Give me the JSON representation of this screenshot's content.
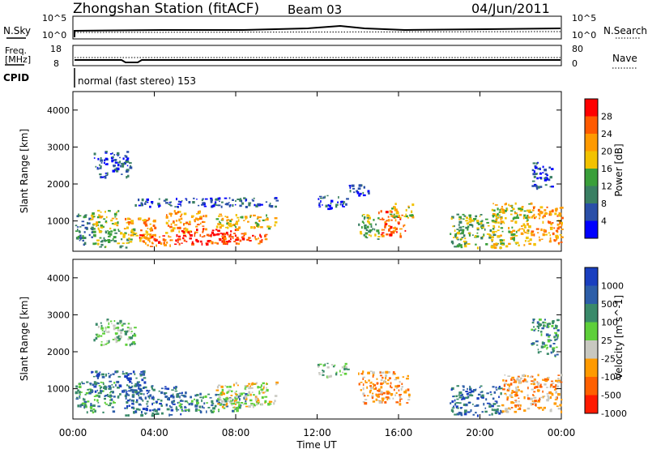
{
  "header": {
    "station": "Zhongshan Station (fitACF)",
    "beam": "Beam 03",
    "date": "04/Jun/2011"
  },
  "top_panels": {
    "nsky_label": "N.Sky",
    "nsky_ticks": [
      "10^5",
      "10^0"
    ],
    "nsearch_label": "N.Search",
    "nsearch_ticks": [
      "10^5",
      "10^0"
    ],
    "freq_label_1": "Freq.",
    "freq_label_2": "[MHz]",
    "freq_ticks": [
      "18",
      "8"
    ],
    "nave_label": "Nave",
    "nave_ticks": [
      "80",
      "0"
    ],
    "cpid_label": "CPID",
    "cpid_text": "normal (fast stereo) 153"
  },
  "axes": {
    "ylabel": "Slant Range [km]",
    "xlabel": "Time UT",
    "yticks": [
      "4000",
      "3000",
      "2000",
      "1000"
    ],
    "xticks": [
      "00:00",
      "04:00",
      "08:00",
      "12:00",
      "16:00",
      "20:00",
      "00:00"
    ]
  },
  "power_scale": {
    "label": "Power [dB]",
    "ticks": [
      "28",
      "24",
      "20",
      "16",
      "12",
      "8",
      "4"
    ],
    "colors": [
      "#ff0000",
      "#ff5a00",
      "#ff9a00",
      "#f2c200",
      "#3a9f3a",
      "#3a7f63",
      "#2a4fa8",
      "#0000ff"
    ]
  },
  "velocity_scale": {
    "label": "Velocity [m s^-1]",
    "ticks": [
      "1000",
      "500",
      "100",
      "25",
      "-25",
      "-100",
      "-500",
      "-1000"
    ],
    "colors": [
      "#1a3fbf",
      "#2d5ea8",
      "#3a8a6a",
      "#5ecf3a",
      "#c8c8c0",
      "#ff9a00",
      "#ff6000",
      "#ff1a00"
    ]
  },
  "chart_data": {
    "type": "heatmap",
    "x_range_hours": [
      0,
      24
    ],
    "y_range_km": [
      180,
      4500
    ],
    "power_patches": [
      {
        "t0": 0.1,
        "t1": 1.0,
        "r0": 350,
        "r1": 1200,
        "level": 2
      },
      {
        "t0": 0.8,
        "t1": 2.2,
        "r0": 800,
        "r1": 1300,
        "level": 4
      },
      {
        "t0": 1.0,
        "t1": 3.0,
        "r0": 300,
        "r1": 800,
        "level": 3
      },
      {
        "t0": 2.5,
        "t1": 4.0,
        "r0": 500,
        "r1": 1100,
        "level": 5
      },
      {
        "t0": 3.2,
        "t1": 5.0,
        "r0": 300,
        "r1": 650,
        "level": 6
      },
      {
        "t0": 4.5,
        "t1": 6.5,
        "r0": 700,
        "r1": 1300,
        "level": 5
      },
      {
        "t0": 5.0,
        "t1": 8.0,
        "r0": 400,
        "r1": 800,
        "level": 7
      },
      {
        "t0": 6.5,
        "t1": 9.5,
        "r0": 400,
        "r1": 700,
        "level": 6
      },
      {
        "t0": 7.0,
        "t1": 10.0,
        "r0": 800,
        "r1": 1200,
        "level": 4
      },
      {
        "t0": 3.0,
        "t1": 10.0,
        "r0": 1400,
        "r1": 1650,
        "level": 1
      },
      {
        "t0": 1.0,
        "t1": 2.8,
        "r0": 2200,
        "r1": 2900,
        "level": 1
      },
      {
        "t0": 12.0,
        "t1": 13.5,
        "r0": 1350,
        "r1": 1700,
        "level": 1
      },
      {
        "t0": 13.5,
        "t1": 14.5,
        "r0": 1700,
        "r1": 2000,
        "level": 1
      },
      {
        "t0": 14.0,
        "t1": 15.0,
        "r0": 500,
        "r1": 1200,
        "level": 3
      },
      {
        "t0": 15.0,
        "t1": 16.3,
        "r0": 600,
        "r1": 1300,
        "level": 6
      },
      {
        "t0": 15.5,
        "t1": 16.7,
        "r0": 1100,
        "r1": 1500,
        "level": 4
      },
      {
        "t0": 18.5,
        "t1": 21.0,
        "r0": 300,
        "r1": 1200,
        "level": 3
      },
      {
        "t0": 20.5,
        "t1": 22.5,
        "r0": 300,
        "r1": 1500,
        "level": 4
      },
      {
        "t0": 22.5,
        "t1": 24.0,
        "r0": 400,
        "r1": 1400,
        "level": 5
      },
      {
        "t0": 22.5,
        "t1": 23.5,
        "r0": 1900,
        "r1": 2600,
        "level": 1
      }
    ],
    "velocity_patches": [
      {
        "t0": 0.1,
        "t1": 2.0,
        "r0": 350,
        "r1": 1200,
        "level": 5
      },
      {
        "t0": 0.8,
        "t1": 3.5,
        "r0": 800,
        "r1": 1500,
        "level": 6
      },
      {
        "t0": 2.5,
        "t1": 5.5,
        "r0": 300,
        "r1": 1100,
        "level": 6
      },
      {
        "t0": 5.0,
        "t1": 8.5,
        "r0": 400,
        "r1": 900,
        "level": 5
      },
      {
        "t0": 7.0,
        "t1": 10.0,
        "r0": 500,
        "r1": 1200,
        "level": 3
      },
      {
        "t0": 1.0,
        "t1": 3.0,
        "r0": 2200,
        "r1": 2900,
        "level": 4
      },
      {
        "t0": 12.0,
        "t1": 13.5,
        "r0": 1350,
        "r1": 1700,
        "level": 4
      },
      {
        "t0": 14.0,
        "t1": 16.5,
        "r0": 600,
        "r1": 1500,
        "level": 2
      },
      {
        "t0": 18.5,
        "t1": 21.0,
        "r0": 300,
        "r1": 1100,
        "level": 6
      },
      {
        "t0": 21.0,
        "t1": 24.0,
        "r0": 400,
        "r1": 1400,
        "level": 2
      },
      {
        "t0": 22.5,
        "t1": 23.8,
        "r0": 1900,
        "r1": 2900,
        "level": 5
      }
    ]
  }
}
